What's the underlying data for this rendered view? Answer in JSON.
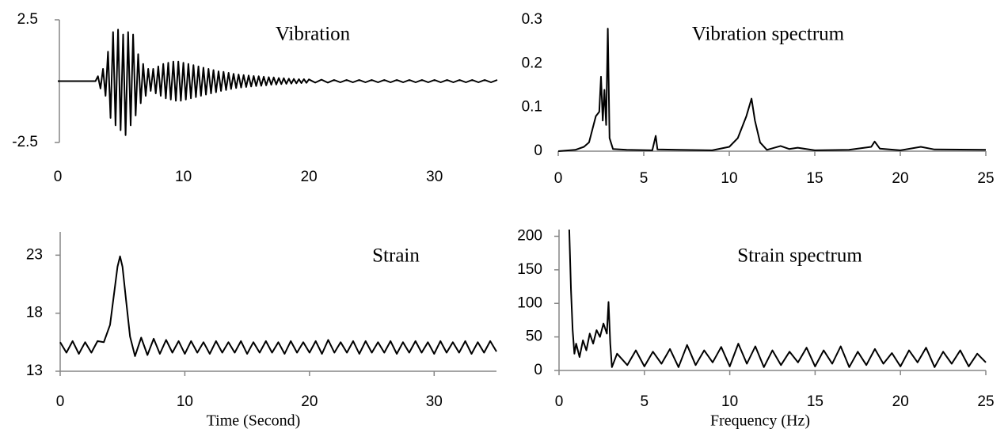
{
  "chart_data": [
    {
      "type": "line",
      "title": "Vibration",
      "color": "#000000",
      "xlim": [
        0,
        35
      ],
      "xticks": [
        0,
        10,
        20,
        30
      ],
      "ylim": [
        -2.5,
        2.5
      ],
      "yticks": [
        2.5,
        -2.5
      ],
      "x": [
        0,
        1,
        2,
        3,
        3.2,
        3.4,
        3.6,
        3.8,
        4.0,
        4.2,
        4.4,
        4.6,
        4.8,
        5.0,
        5.2,
        5.4,
        5.6,
        5.8,
        6.0,
        6.2,
        6.4,
        6.6,
        6.8,
        7.0,
        7.2,
        7.4,
        7.6,
        7.8,
        8.0,
        8.2,
        8.4,
        8.6,
        8.8,
        9.0,
        9.2,
        9.4,
        9.6,
        9.8,
        10.0,
        10.2,
        10.4,
        10.6,
        10.8,
        11.0,
        11.2,
        11.4,
        11.6,
        11.8,
        12.0,
        12.2,
        12.4,
        12.6,
        12.8,
        13.0,
        13.2,
        13.4,
        13.6,
        13.8,
        14.0,
        14.2,
        14.4,
        14.6,
        14.8,
        15.0,
        15.2,
        15.4,
        15.6,
        15.8,
        16.0,
        16.2,
        16.4,
        16.6,
        16.8,
        17.0,
        17.2,
        17.4,
        17.6,
        17.8,
        18.0,
        18.2,
        18.4,
        18.6,
        18.8,
        19.0,
        19.2,
        19.4,
        19.6,
        19.8,
        20.0,
        20.5,
        21,
        21.5,
        22,
        22.5,
        23,
        23.5,
        24,
        24.5,
        25,
        25.5,
        26,
        26.5,
        27,
        27.5,
        28,
        28.5,
        29,
        29.5,
        30,
        30.5,
        31,
        31.5,
        32,
        32.5,
        33,
        33.5,
        34,
        34.5,
        35
      ],
      "values": [
        0,
        0,
        0,
        0,
        0.2,
        -0.3,
        0.5,
        -0.6,
        1.2,
        -1.5,
        2.0,
        -1.8,
        2.1,
        -2.0,
        1.9,
        -2.2,
        2.0,
        -1.8,
        1.9,
        -1.4,
        1.1,
        -0.9,
        0.7,
        -0.6,
        0.5,
        -0.4,
        0.5,
        -0.5,
        0.6,
        -0.6,
        0.7,
        -0.7,
        0.75,
        -0.75,
        0.8,
        -0.8,
        0.8,
        -0.8,
        0.75,
        -0.75,
        0.7,
        -0.7,
        0.65,
        -0.65,
        0.6,
        -0.6,
        0.55,
        -0.55,
        0.5,
        -0.5,
        0.45,
        -0.45,
        0.4,
        -0.4,
        0.38,
        -0.36,
        0.34,
        -0.32,
        0.3,
        -0.28,
        0.27,
        -0.26,
        0.25,
        -0.24,
        0.23,
        -0.22,
        0.21,
        -0.2,
        0.2,
        -0.19,
        0.18,
        -0.17,
        0.16,
        -0.15,
        0.15,
        -0.14,
        0.13,
        -0.12,
        0.12,
        -0.11,
        0.1,
        -0.1,
        0.09,
        -0.09,
        0.08,
        -0.08,
        0.08,
        -0.07,
        0.07,
        -0.06,
        0.06,
        -0.06,
        0.05,
        -0.05,
        0.05,
        -0.05,
        0.05,
        -0.05,
        0.05,
        -0.05,
        0.05,
        -0.05,
        0.05,
        -0.05,
        0.05,
        -0.05,
        0.05,
        -0.05,
        0.05,
        -0.05,
        0.05,
        -0.05,
        0.05,
        -0.05,
        0.05,
        -0.05,
        0.05,
        -0.05,
        0.05
      ]
    },
    {
      "type": "line",
      "title": "Vibration spectrum",
      "color": "#000000",
      "xlim": [
        0,
        25
      ],
      "xticks": [
        0,
        5,
        10,
        15,
        20,
        25
      ],
      "ylim": [
        0,
        0.3
      ],
      "yticks": [
        0,
        0.1,
        0.2,
        0.3
      ],
      "x": [
        0,
        1,
        1.5,
        1.8,
        2,
        2.2,
        2.4,
        2.5,
        2.6,
        2.7,
        2.8,
        2.9,
        3.0,
        3.2,
        4,
        5.5,
        5.7,
        5.8,
        7,
        9,
        10,
        10.5,
        11,
        11.3,
        11.5,
        11.8,
        12.2,
        13,
        13.5,
        14,
        15,
        17,
        18.3,
        18.5,
        18.8,
        20,
        21.2,
        22,
        25
      ],
      "values": [
        0,
        0.003,
        0.01,
        0.02,
        0.05,
        0.08,
        0.09,
        0.17,
        0.07,
        0.14,
        0.06,
        0.28,
        0.03,
        0.005,
        0.003,
        0.002,
        0.035,
        0.004,
        0.003,
        0.002,
        0.01,
        0.03,
        0.08,
        0.12,
        0.07,
        0.02,
        0.003,
        0.012,
        0.005,
        0.008,
        0.002,
        0.003,
        0.01,
        0.022,
        0.006,
        0.002,
        0.01,
        0.004,
        0.003
      ]
    },
    {
      "type": "line",
      "title": "Strain",
      "xlabel": "Time (Second)",
      "color": "#000000",
      "xlim": [
        0,
        35
      ],
      "xticks": [
        0,
        10,
        20,
        30
      ],
      "ylim": [
        13,
        25
      ],
      "yticks": [
        13,
        18,
        23
      ],
      "x": [
        0,
        0.5,
        1,
        1.5,
        2,
        2.5,
        3,
        3.5,
        4.0,
        4.3,
        4.6,
        4.8,
        5.0,
        5.3,
        5.6,
        6.0,
        6.5,
        7,
        7.5,
        8,
        8.5,
        9,
        9.5,
        10,
        10.5,
        11,
        11.5,
        12,
        12.5,
        13,
        13.5,
        14,
        14.5,
        15,
        15.5,
        16,
        16.5,
        17,
        17.5,
        18,
        18.5,
        19,
        19.5,
        20,
        20.5,
        21,
        21.5,
        22,
        22.5,
        23,
        23.5,
        24,
        24.5,
        25,
        25.5,
        26,
        26.5,
        27,
        27.5,
        28,
        28.5,
        29,
        29.5,
        30,
        30.5,
        31,
        31.5,
        32,
        32.5,
        33,
        33.5,
        34,
        34.5,
        35
      ],
      "values": [
        15.5,
        14.6,
        15.6,
        14.5,
        15.5,
        14.6,
        15.6,
        15.5,
        17,
        19.5,
        22,
        22.9,
        22,
        19,
        16,
        14.3,
        15.9,
        14.4,
        15.8,
        14.5,
        15.7,
        14.6,
        15.6,
        14.5,
        15.6,
        14.6,
        15.5,
        14.5,
        15.6,
        14.6,
        15.5,
        14.6,
        15.6,
        14.5,
        15.5,
        14.6,
        15.6,
        14.6,
        15.5,
        14.5,
        15.6,
        14.6,
        15.5,
        14.6,
        15.6,
        14.5,
        15.7,
        14.6,
        15.5,
        14.6,
        15.6,
        14.5,
        15.6,
        14.6,
        15.5,
        14.6,
        15.6,
        14.5,
        15.5,
        14.6,
        15.6,
        14.6,
        15.5,
        14.5,
        15.6,
        14.6,
        15.5,
        14.6,
        15.6,
        14.5,
        15.5,
        14.6,
        15.6,
        14.7
      ]
    },
    {
      "type": "line",
      "title": "Strain spectrum",
      "xlabel": "Frequency (Hz)",
      "color": "#000000",
      "xlim": [
        0,
        25
      ],
      "xticks": [
        0,
        5,
        10,
        15,
        20,
        25
      ],
      "ylim": [
        0,
        210
      ],
      "yticks": [
        0,
        50,
        100,
        150,
        200
      ],
      "x": [
        0.6,
        0.7,
        0.8,
        0.9,
        1.0,
        1.2,
        1.4,
        1.6,
        1.8,
        2.0,
        2.2,
        2.4,
        2.6,
        2.8,
        2.9,
        3.0,
        3.1,
        3.4,
        4,
        4.5,
        5,
        5.5,
        6,
        6.5,
        7,
        7.5,
        8,
        8.5,
        9,
        9.5,
        10,
        10.5,
        11,
        11.5,
        12,
        12.5,
        13,
        13.5,
        14,
        14.5,
        15,
        15.5,
        16,
        16.5,
        17,
        17.5,
        18,
        18.5,
        19,
        19.5,
        20,
        20.5,
        21,
        21.5,
        22,
        22.5,
        23,
        23.5,
        24,
        24.5,
        25
      ],
      "values": [
        210,
        120,
        60,
        25,
        40,
        20,
        45,
        30,
        55,
        40,
        60,
        50,
        70,
        55,
        102,
        40,
        5,
        25,
        8,
        30,
        6,
        28,
        10,
        32,
        5,
        38,
        8,
        30,
        12,
        35,
        6,
        40,
        10,
        36,
        5,
        30,
        8,
        28,
        12,
        34,
        6,
        30,
        10,
        36,
        5,
        28,
        8,
        32,
        10,
        26,
        6,
        30,
        12,
        34,
        5,
        28,
        10,
        30,
        6,
        25,
        12
      ]
    }
  ]
}
